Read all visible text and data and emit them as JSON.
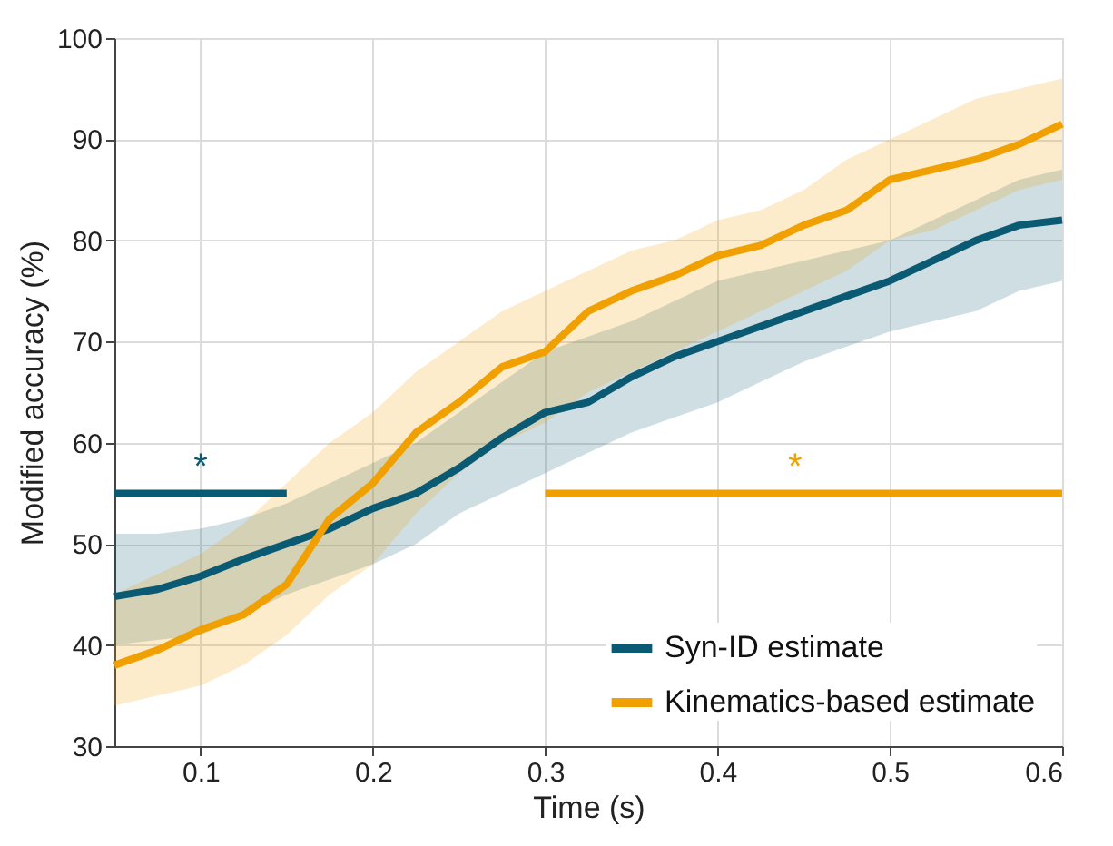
{
  "chart_data": {
    "type": "line",
    "xlabel": "Time (s)",
    "ylabel": "Modified accuracy (%)",
    "xlim": [
      0.05,
      0.6
    ],
    "xticks": [
      0.1,
      0.2,
      0.3,
      0.4,
      0.5,
      0.6
    ],
    "ylim": [
      30,
      100
    ],
    "yticks": [
      30,
      40,
      50,
      60,
      70,
      80,
      90,
      100
    ],
    "grid": true,
    "legend": "bottom right",
    "line_style": "solid",
    "marker": "none",
    "x": [
      0.05,
      0.075,
      0.1,
      0.125,
      0.15,
      0.175,
      0.2,
      0.225,
      0.25,
      0.275,
      0.3,
      0.325,
      0.35,
      0.375,
      0.4,
      0.425,
      0.45,
      0.475,
      0.5,
      0.525,
      0.55,
      0.575,
      0.6
    ],
    "series": [
      {
        "name": "Syn-ID estimate",
        "color": "#0b5a73",
        "values": [
          44.8,
          45.5,
          46.8,
          48.5,
          50,
          51.5,
          53.5,
          55,
          57.5,
          60.5,
          63,
          64,
          66.5,
          68.5,
          70,
          71.5,
          73,
          74.5,
          76,
          78,
          80,
          81.5,
          82
        ],
        "lower": [
          40,
          40.5,
          41,
          43,
          45,
          46.5,
          48,
          50,
          53,
          55,
          57,
          59,
          61,
          62.5,
          64,
          66,
          68,
          69.5,
          71,
          72,
          73,
          75,
          76
        ],
        "upper": [
          51,
          51,
          51.5,
          52.5,
          54,
          56,
          58,
          60,
          63,
          66,
          69,
          70.5,
          72,
          74,
          76,
          77,
          78,
          79,
          80,
          82,
          84,
          86,
          87
        ]
      },
      {
        "name": "Kinematics-based estimate",
        "color": "#f0a000",
        "values": [
          38,
          39.5,
          41.5,
          43,
          46,
          52.5,
          56,
          61,
          64,
          67.5,
          69,
          73,
          75,
          76.5,
          78.5,
          79.5,
          81.5,
          83,
          86,
          87,
          88,
          89.5,
          91.5
        ],
        "lower": [
          34,
          35,
          36,
          38,
          41,
          45,
          48,
          53,
          57,
          60,
          62,
          65,
          67,
          69,
          71,
          73,
          75,
          77,
          80,
          81,
          83,
          85,
          86
        ],
        "upper": [
          45,
          47,
          49,
          52,
          56,
          60,
          63,
          67,
          70,
          73,
          75,
          77,
          79,
          80,
          82,
          83,
          85,
          88,
          90,
          92,
          94,
          95,
          96
        ]
      },
      {
        "type": "line",
        "color": "#0b5a73",
        "x": [
          0.05,
          0.15
        ],
        "values": [
          55,
          55
        ]
      },
      {
        "type": "line",
        "color": "#f0a000",
        "x": [
          0.3,
          0.6
        ],
        "values": [
          55,
          55
        ]
      }
    ],
    "annotations": [
      {
        "text": "*",
        "x": 0.1,
        "y": 55
      },
      {
        "text": "*",
        "x": 0.445,
        "y": 55
      }
    ]
  }
}
